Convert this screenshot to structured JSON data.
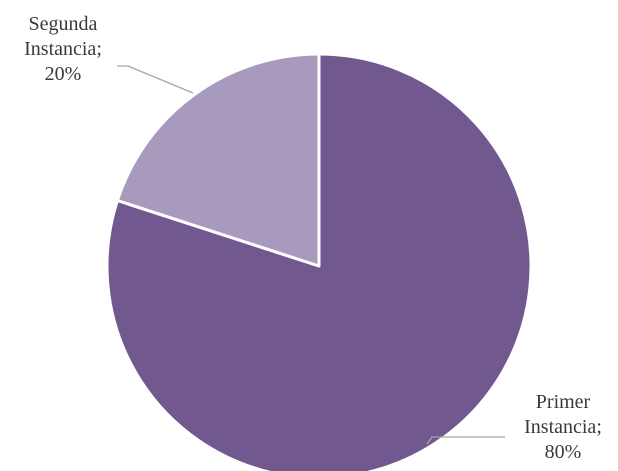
{
  "chart_data": {
    "type": "pie",
    "title": "",
    "slices": [
      {
        "label_lines": [
          "Primer",
          "Instancia;",
          "80%"
        ],
        "category": "Primer Instancia",
        "value": 80,
        "color": "#71588f"
      },
      {
        "label_lines": [
          "Segunda",
          "Instancia;",
          "20%"
        ],
        "category": "Segunda Instancia",
        "value": 20,
        "color": "#a89abd"
      }
    ],
    "start_angle": "12 o'clock",
    "direction": "clockwise",
    "slice_border_color": "#ffffff",
    "leader_line_color": "#a6a6a6"
  }
}
